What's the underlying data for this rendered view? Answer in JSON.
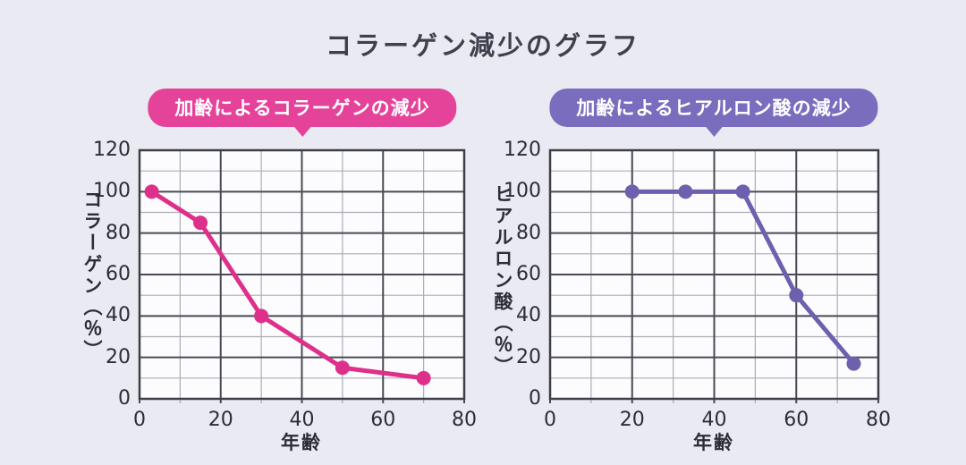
{
  "title": "コラーゲン減少のグラフ",
  "background_color": "#EAEAF2",
  "plot_background_color": "#FCFCFE",
  "grid_major_color": "#4A4A54",
  "grid_minor_color": "#ACACB6",
  "text_color": "#2D2D36",
  "title_color": "#3F3F4D",
  "chart_data": [
    {
      "type": "line",
      "badge_label": "加齢によるコラーゲンの減少",
      "badge_color": "#E5439A",
      "line_color": "#DE2F8A",
      "ylabel": "コラーゲン（％）",
      "xlabel": "年齢",
      "xlim": [
        0,
        80
      ],
      "ylim": [
        0,
        120
      ],
      "x_ticks": [
        0,
        20,
        40,
        60,
        80
      ],
      "y_ticks": [
        0,
        20,
        40,
        60,
        80,
        100,
        120
      ],
      "minor_step": 10,
      "grid": true,
      "legend": "none",
      "points": [
        [
          3,
          100
        ],
        [
          15,
          85
        ],
        [
          30,
          40
        ],
        [
          50,
          15
        ],
        [
          70,
          10
        ]
      ]
    },
    {
      "type": "line",
      "badge_label": "加齢によるヒアルロン酸の減少",
      "badge_color": "#7A6DBE",
      "line_color": "#6C61AE",
      "ylabel": "ヒアルロン酸（％）",
      "xlabel": "年齢",
      "xlim": [
        0,
        80
      ],
      "ylim": [
        0,
        120
      ],
      "x_ticks": [
        0,
        20,
        40,
        60,
        80
      ],
      "y_ticks": [
        0,
        20,
        40,
        60,
        80,
        100,
        120
      ],
      "minor_step": 10,
      "grid": true,
      "legend": "none",
      "points": [
        [
          20,
          100
        ],
        [
          33,
          100
        ],
        [
          47,
          100
        ],
        [
          60,
          50
        ],
        [
          74,
          17
        ]
      ]
    }
  ]
}
